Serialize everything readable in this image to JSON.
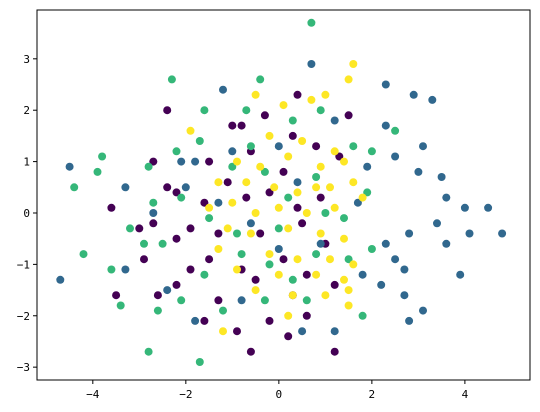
{
  "chart_data": {
    "type": "scatter",
    "title": "",
    "xlabel": "",
    "ylabel": "",
    "xlim": [
      -5.2,
      5.4
    ],
    "ylim": [
      -3.25,
      3.95
    ],
    "x_ticks": [
      -4,
      -2,
      0,
      2,
      4
    ],
    "y_ticks": [
      -3,
      -2,
      -1,
      0,
      1,
      2,
      3
    ],
    "x_tick_labels": [
      "−4",
      "−2",
      "0",
      "2",
      "4"
    ],
    "y_tick_labels": [
      "−3",
      "−2",
      "−1",
      "0",
      "1",
      "2",
      "3"
    ],
    "grid": false,
    "legend": "none",
    "series": [
      {
        "color": "#440154",
        "points": [
          [
            -2.4,
            2.0
          ],
          [
            -0.3,
            1.9
          ],
          [
            0.4,
            2.3
          ],
          [
            1.5,
            1.9
          ],
          [
            -1.0,
            1.7
          ],
          [
            -0.8,
            1.7
          ],
          [
            0.3,
            1.5
          ],
          [
            -2.7,
            1.0
          ],
          [
            -2.4,
            0.5
          ],
          [
            -2.2,
            0.4
          ],
          [
            -1.5,
            1.0
          ],
          [
            -0.6,
            1.2
          ],
          [
            0.8,
            1.3
          ],
          [
            1.3,
            1.1
          ],
          [
            -3.6,
            0.1
          ],
          [
            -3.0,
            -0.3
          ],
          [
            -2.7,
            -0.2
          ],
          [
            -2.2,
            -0.5
          ],
          [
            -1.9,
            -0.3
          ],
          [
            -1.3,
            -0.4
          ],
          [
            -0.2,
            0.4
          ],
          [
            0.5,
            -0.2
          ],
          [
            0.9,
            0.3
          ],
          [
            -2.2,
            -1.4
          ],
          [
            -1.9,
            -1.1
          ],
          [
            -1.5,
            -0.9
          ],
          [
            -0.8,
            -1.1
          ],
          [
            0.1,
            -0.9
          ],
          [
            0.6,
            -1.2
          ],
          [
            1.2,
            -1.4
          ],
          [
            -3.5,
            -1.6
          ],
          [
            -2.6,
            -1.6
          ],
          [
            -1.3,
            -1.7
          ],
          [
            -0.5,
            -1.3
          ],
          [
            0.3,
            -1.6
          ],
          [
            -1.6,
            -2.1
          ],
          [
            -0.9,
            -2.3
          ],
          [
            -0.2,
            -2.1
          ],
          [
            0.6,
            -2.0
          ],
          [
            -0.6,
            -2.7
          ],
          [
            0.2,
            -2.4
          ],
          [
            1.2,
            -2.7
          ],
          [
            -1.1,
            0.6
          ],
          [
            0.1,
            0.8
          ],
          [
            -0.4,
            -0.4
          ],
          [
            1.0,
            -0.6
          ],
          [
            -2.9,
            -0.9
          ],
          [
            -1.6,
            0.2
          ],
          [
            0.4,
            0.1
          ],
          [
            -0.7,
            0.3
          ]
        ]
      },
      {
        "color": "#31688e",
        "points": [
          [
            -4.7,
            -1.3
          ],
          [
            -4.5,
            0.9
          ],
          [
            -3.3,
            0.5
          ],
          [
            -2.7,
            0.0
          ],
          [
            -2.0,
            0.5
          ],
          [
            -1.8,
            1.0
          ],
          [
            -1.2,
            2.4
          ],
          [
            -2.1,
            1.0
          ],
          [
            -1.0,
            1.2
          ],
          [
            0.0,
            1.3
          ],
          [
            0.7,
            2.9
          ],
          [
            1.2,
            1.8
          ],
          [
            2.3,
            1.7
          ],
          [
            2.3,
            2.5
          ],
          [
            2.9,
            2.3
          ],
          [
            3.3,
            2.2
          ],
          [
            3.1,
            1.3
          ],
          [
            2.5,
            1.1
          ],
          [
            1.9,
            0.9
          ],
          [
            3.0,
            0.8
          ],
          [
            3.5,
            0.7
          ],
          [
            3.6,
            0.3
          ],
          [
            4.0,
            0.1
          ],
          [
            4.5,
            0.1
          ],
          [
            4.8,
            -0.4
          ],
          [
            4.1,
            -0.4
          ],
          [
            3.6,
            -0.6
          ],
          [
            3.4,
            -0.2
          ],
          [
            2.8,
            -0.4
          ],
          [
            2.3,
            -0.6
          ],
          [
            2.5,
            -0.9
          ],
          [
            2.7,
            -1.1
          ],
          [
            3.9,
            -1.2
          ],
          [
            2.2,
            -1.4
          ],
          [
            2.7,
            -1.6
          ],
          [
            3.1,
            -1.9
          ],
          [
            2.8,
            -2.1
          ],
          [
            1.8,
            -1.2
          ],
          [
            0.9,
            -0.6
          ],
          [
            -0.6,
            -0.2
          ],
          [
            -1.3,
            0.2
          ],
          [
            0.4,
            0.6
          ],
          [
            -2.4,
            -1.5
          ],
          [
            -1.8,
            -2.1
          ],
          [
            -0.8,
            -1.7
          ],
          [
            0.5,
            -2.3
          ],
          [
            1.2,
            -2.3
          ],
          [
            -3.3,
            -1.1
          ],
          [
            1.7,
            0.2
          ],
          [
            0.0,
            -0.7
          ]
        ]
      },
      {
        "color": "#35b779",
        "points": [
          [
            0.7,
            3.7
          ],
          [
            -4.4,
            0.5
          ],
          [
            -4.2,
            -0.8
          ],
          [
            -3.9,
            0.8
          ],
          [
            -3.8,
            1.1
          ],
          [
            -3.6,
            -1.1
          ],
          [
            -3.4,
            -1.8
          ],
          [
            -2.8,
            0.9
          ],
          [
            -2.7,
            0.2
          ],
          [
            -2.5,
            -0.6
          ],
          [
            -2.3,
            2.6
          ],
          [
            -2.2,
            1.2
          ],
          [
            -1.7,
            1.4
          ],
          [
            -1.6,
            2.0
          ],
          [
            -0.7,
            2.0
          ],
          [
            -0.4,
            2.6
          ],
          [
            -0.6,
            1.3
          ],
          [
            0.3,
            1.8
          ],
          [
            0.9,
            2.0
          ],
          [
            1.6,
            1.3
          ],
          [
            2.0,
            1.2
          ],
          [
            2.5,
            1.6
          ],
          [
            1.9,
            0.4
          ],
          [
            1.4,
            -0.1
          ],
          [
            0.8,
            0.7
          ],
          [
            0.2,
            0.3
          ],
          [
            -0.3,
            0.8
          ],
          [
            -1.0,
            0.9
          ],
          [
            -2.1,
            0.3
          ],
          [
            -3.2,
            -0.3
          ],
          [
            -2.9,
            -0.6
          ],
          [
            -1.5,
            -0.1
          ],
          [
            -0.9,
            -0.4
          ],
          [
            0.0,
            -0.3
          ],
          [
            0.8,
            -0.8
          ],
          [
            1.5,
            -0.9
          ],
          [
            2.0,
            -0.7
          ],
          [
            -2.6,
            -1.9
          ],
          [
            -2.1,
            -1.7
          ],
          [
            -1.6,
            -1.2
          ],
          [
            -0.8,
            -0.8
          ],
          [
            0.3,
            -1.3
          ],
          [
            1.8,
            -2.0
          ],
          [
            -2.8,
            -2.7
          ],
          [
            -1.7,
            -2.9
          ],
          [
            -1.2,
            -1.9
          ],
          [
            -0.3,
            -1.7
          ],
          [
            0.6,
            -1.7
          ],
          [
            1.0,
            0.0
          ],
          [
            -0.2,
            -1.0
          ]
        ]
      },
      {
        "color": "#fde725",
        "points": [
          [
            1.6,
            2.9
          ],
          [
            1.5,
            2.6
          ],
          [
            1.0,
            2.3
          ],
          [
            0.7,
            2.2
          ],
          [
            -0.5,
            2.3
          ],
          [
            0.1,
            2.1
          ],
          [
            -1.9,
            1.6
          ],
          [
            -0.2,
            1.5
          ],
          [
            0.5,
            1.4
          ],
          [
            1.2,
            1.2
          ],
          [
            1.4,
            1.0
          ],
          [
            -0.9,
            1.0
          ],
          [
            -0.4,
            0.9
          ],
          [
            0.2,
            1.1
          ],
          [
            0.9,
            0.9
          ],
          [
            1.6,
            0.6
          ],
          [
            -1.3,
            0.6
          ],
          [
            -0.7,
            0.6
          ],
          [
            -0.1,
            0.5
          ],
          [
            0.4,
            0.4
          ],
          [
            1.1,
            0.5
          ],
          [
            1.8,
            0.3
          ],
          [
            -1.5,
            0.1
          ],
          [
            -1.0,
            0.2
          ],
          [
            -0.5,
            0.0
          ],
          [
            0.0,
            0.1
          ],
          [
            0.6,
            0.0
          ],
          [
            1.2,
            0.1
          ],
          [
            -1.1,
            -0.3
          ],
          [
            -0.6,
            -0.4
          ],
          [
            0.2,
            -0.3
          ],
          [
            0.9,
            -0.4
          ],
          [
            1.4,
            -0.5
          ],
          [
            -1.3,
            -0.7
          ],
          [
            -0.2,
            -0.8
          ],
          [
            0.4,
            -0.9
          ],
          [
            1.1,
            -0.9
          ],
          [
            1.6,
            -1.0
          ],
          [
            -0.9,
            -1.1
          ],
          [
            0.0,
            -1.2
          ],
          [
            0.8,
            -1.2
          ],
          [
            1.4,
            -1.3
          ],
          [
            -0.5,
            -1.5
          ],
          [
            0.3,
            -1.6
          ],
          [
            1.0,
            -1.6
          ],
          [
            1.5,
            -1.5
          ],
          [
            -1.2,
            -2.3
          ],
          [
            0.2,
            -2.0
          ],
          [
            1.5,
            -1.8
          ],
          [
            0.8,
            0.5
          ]
        ]
      }
    ]
  }
}
